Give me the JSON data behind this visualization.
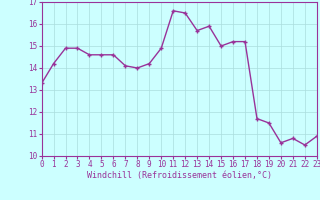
{
  "x": [
    0,
    1,
    2,
    3,
    4,
    5,
    6,
    7,
    8,
    9,
    10,
    11,
    12,
    13,
    14,
    15,
    16,
    17,
    18,
    19,
    20,
    21,
    22,
    23
  ],
  "y": [
    13.3,
    14.2,
    14.9,
    14.9,
    14.6,
    14.6,
    14.6,
    14.1,
    14.0,
    14.2,
    14.9,
    16.6,
    16.5,
    15.7,
    15.9,
    15.0,
    15.2,
    15.2,
    11.7,
    11.5,
    10.6,
    10.8,
    10.5,
    10.9
  ],
  "line_color": "#993399",
  "marker": "+",
  "marker_size": 3,
  "marker_lw": 1.0,
  "line_width": 1.0,
  "bg_color": "#ccffff",
  "grid_color": "#aadddd",
  "xlabel": "Windchill (Refroidissement éolien,°C)",
  "xlabel_color": "#993399",
  "tick_color": "#993399",
  "ylim_min": 10,
  "ylim_max": 17,
  "xlim_min": 0,
  "xlim_max": 23,
  "yticks": [
    10,
    11,
    12,
    13,
    14,
    15,
    16,
    17
  ],
  "xticks": [
    0,
    1,
    2,
    3,
    4,
    5,
    6,
    7,
    8,
    9,
    10,
    11,
    12,
    13,
    14,
    15,
    16,
    17,
    18,
    19,
    20,
    21,
    22,
    23
  ],
  "tick_fontsize": 5.5,
  "xlabel_fontsize": 6.0,
  "ylabel_fontsize": 6.0
}
